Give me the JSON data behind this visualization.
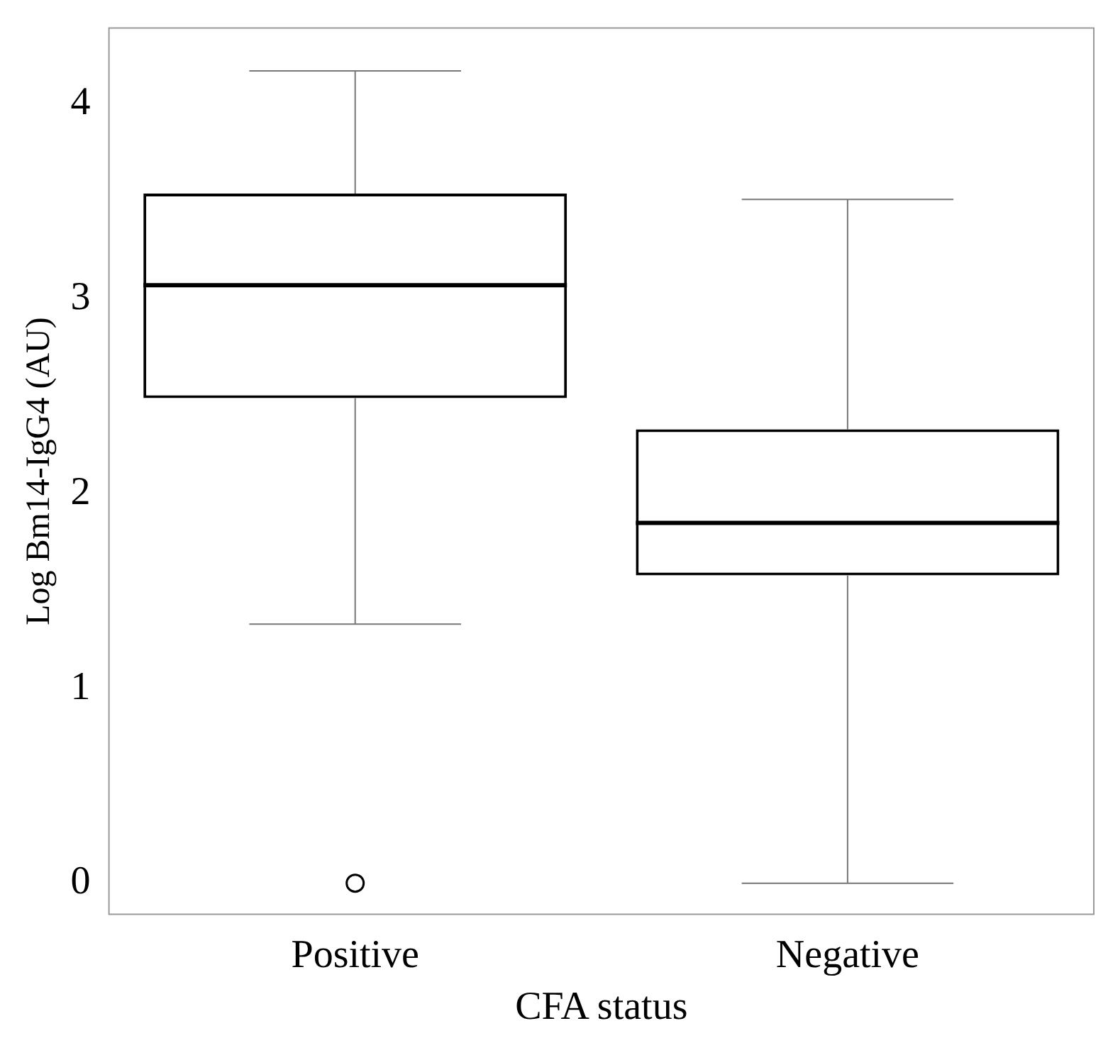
{
  "chart_data": {
    "type": "box",
    "xlabel": "CFA status",
    "ylabel": "Log Bm14-IgG4 (AU)",
    "categories": [
      "Positive",
      "Negative"
    ],
    "boxes": [
      {
        "low": 1.33,
        "q1": 2.49,
        "median": 3.07,
        "q3": 3.54,
        "high": 4.17,
        "outliers": [
          0
        ]
      },
      {
        "low": 0,
        "q1": 1.58,
        "median": 1.85,
        "q3": 2.33,
        "high": 3.51
      }
    ],
    "ylim": [
      -0.16,
      4.39
    ],
    "yticks": [
      0,
      1,
      2,
      3,
      4
    ],
    "grid": false,
    "legend": false,
    "color": "#000000"
  }
}
